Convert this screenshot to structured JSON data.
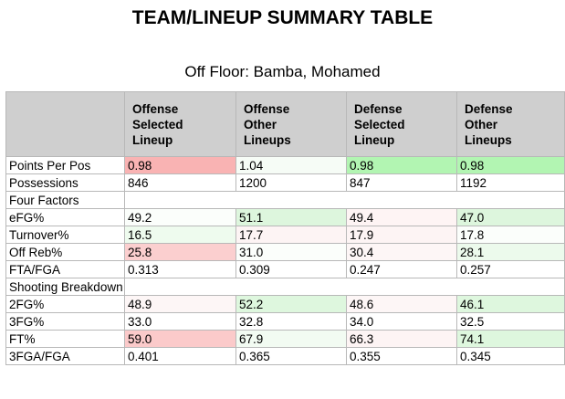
{
  "title": "TEAM/LINEUP SUMMARY TABLE",
  "subtitle": "Off Floor: Bamba, Mohamed",
  "columns": [
    {
      "line1": "Offense",
      "line2": "Selected",
      "line3": "Lineup"
    },
    {
      "line1": "Offense",
      "line2": "Other",
      "line3": "Lineups"
    },
    {
      "line1": "Defense",
      "line2": "Selected",
      "line3": "Lineup"
    },
    {
      "line1": "Defense",
      "line2": "Other",
      "line3": "Lineups"
    }
  ],
  "rows": [
    {
      "label": "Points Per Pos",
      "values": [
        "0.98",
        "1.04",
        "0.98",
        "0.98"
      ],
      "colors": [
        "#f9b3b3",
        "#f6fcf6",
        "#b2f5b2",
        "#b2f5b2"
      ]
    },
    {
      "label": "Possessions",
      "values": [
        "846",
        "1200",
        "847",
        "1192"
      ],
      "colors": [
        "#ffffff",
        "#ffffff",
        "#ffffff",
        "#ffffff"
      ]
    },
    {
      "label": "Four Factors",
      "section": true
    },
    {
      "label": "eFG%",
      "values": [
        "49.2",
        "51.1",
        "49.4",
        "47.0"
      ],
      "colors": [
        "#fbfefb",
        "#ddf6dd",
        "#fef4f4",
        "#ddf6dd"
      ]
    },
    {
      "label": "Turnover%",
      "values": [
        "16.5",
        "17.7",
        "17.9",
        "17.8"
      ],
      "colors": [
        "#eefbee",
        "#fdf4f4",
        "#fdf4f4",
        "#fbfefb"
      ]
    },
    {
      "label": "Off Reb%",
      "values": [
        "25.8",
        "31.0",
        "30.4",
        "28.1"
      ],
      "colors": [
        "#fbcfcf",
        "#fbfefb",
        "#fdf6f6",
        "#ecfaec"
      ]
    },
    {
      "label": "FTA/FGA",
      "values": [
        "0.313",
        "0.309",
        "0.247",
        "0.257"
      ],
      "colors": [
        "#ffffff",
        "#ffffff",
        "#ffffff",
        "#ffffff"
      ]
    },
    {
      "label": "Shooting Breakdown",
      "section": true,
      "wrap": true
    },
    {
      "label": "2FG%",
      "values": [
        "48.9",
        "52.2",
        "48.6",
        "46.1"
      ],
      "colors": [
        "#fdf6f6",
        "#def7de",
        "#fdf6f6",
        "#def7de"
      ]
    },
    {
      "label": "3FG%",
      "values": [
        "33.0",
        "32.8",
        "34.0",
        "32.5"
      ],
      "colors": [
        "#ffffff",
        "#ffffff",
        "#ffffff",
        "#ffffff"
      ]
    },
    {
      "label": "FT%",
      "values": [
        "59.0",
        "67.9",
        "66.3",
        "74.1"
      ],
      "colors": [
        "#fbcaca",
        "#f2fbf2",
        "#fdf4f4",
        "#def7de"
      ]
    },
    {
      "label": "3FGA/FGA",
      "values": [
        "0.401",
        "0.365",
        "0.355",
        "0.345"
      ],
      "colors": [
        "#ffffff",
        "#ffffff",
        "#ffffff",
        "#ffffff"
      ]
    }
  ]
}
